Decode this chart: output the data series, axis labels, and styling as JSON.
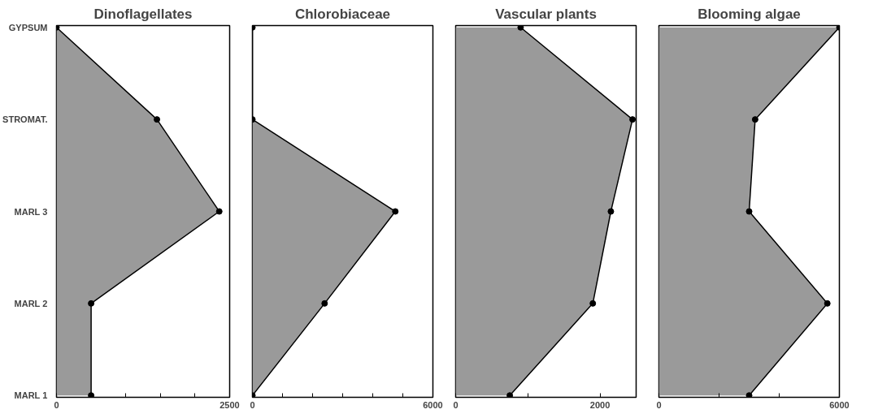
{
  "chart_data": [
    {
      "type": "area",
      "orientation": "horizontal",
      "title": "Dinoflagellates",
      "categories": [
        "GYPSUM",
        "STROMAT.",
        "MARL 3",
        "MARL 2",
        "MARL 1"
      ],
      "values": [
        0,
        1450,
        2350,
        500,
        500
      ],
      "color": "#9a9a9a",
      "marker": "circle",
      "xlim": [
        0,
        2500
      ],
      "xticks": [
        0,
        {
          "value": 500,
          "label": null
        },
        {
          "value": 1000,
          "label": null
        },
        {
          "value": 1500,
          "label": null
        },
        {
          "value": 2000,
          "label": null
        },
        2500
      ]
    },
    {
      "type": "area",
      "orientation": "horizontal",
      "title": "Chlorobiaceae",
      "categories": [
        null,
        null,
        null,
        null,
        null
      ],
      "values": [
        0,
        0,
        4750,
        2400,
        0
      ],
      "color": "#9a9a9a",
      "marker": "circle",
      "xlim": [
        0,
        6000
      ],
      "xticks": [
        0,
        {
          "value": 1000,
          "label": null
        },
        {
          "value": 2000,
          "label": null
        },
        {
          "value": 3000,
          "label": null
        },
        {
          "value": 4000,
          "label": null
        },
        {
          "value": 5000,
          "label": null
        },
        6000
      ],
      "tick_labels": "x"
    },
    {
      "type": "area",
      "orientation": "horizontal",
      "title": "Vascular plants",
      "categories": [
        null,
        null,
        null,
        null,
        null
      ],
      "values": [
        900,
        2450,
        2150,
        1900,
        750
      ],
      "color": "#9a9a9a",
      "marker": "circle",
      "xlim": [
        0,
        2500
      ],
      "xticks": [
        0,
        {
          "value": 1000,
          "label": null
        },
        2000
      ],
      "tick_labels": "x"
    },
    {
      "type": "area",
      "orientation": "horizontal",
      "title": "Blooming algae",
      "categories": [
        null,
        null,
        null,
        null,
        null
      ],
      "values": [
        6000,
        3200,
        3000,
        5600,
        3000
      ],
      "color": "#9a9a9a",
      "marker": "circle",
      "xlim": [
        0,
        6000
      ],
      "xticks": [
        0,
        {
          "value": 2000,
          "label": null
        },
        {
          "value": 4000,
          "label": null
        },
        6000
      ],
      "tick_labels": "x"
    }
  ]
}
